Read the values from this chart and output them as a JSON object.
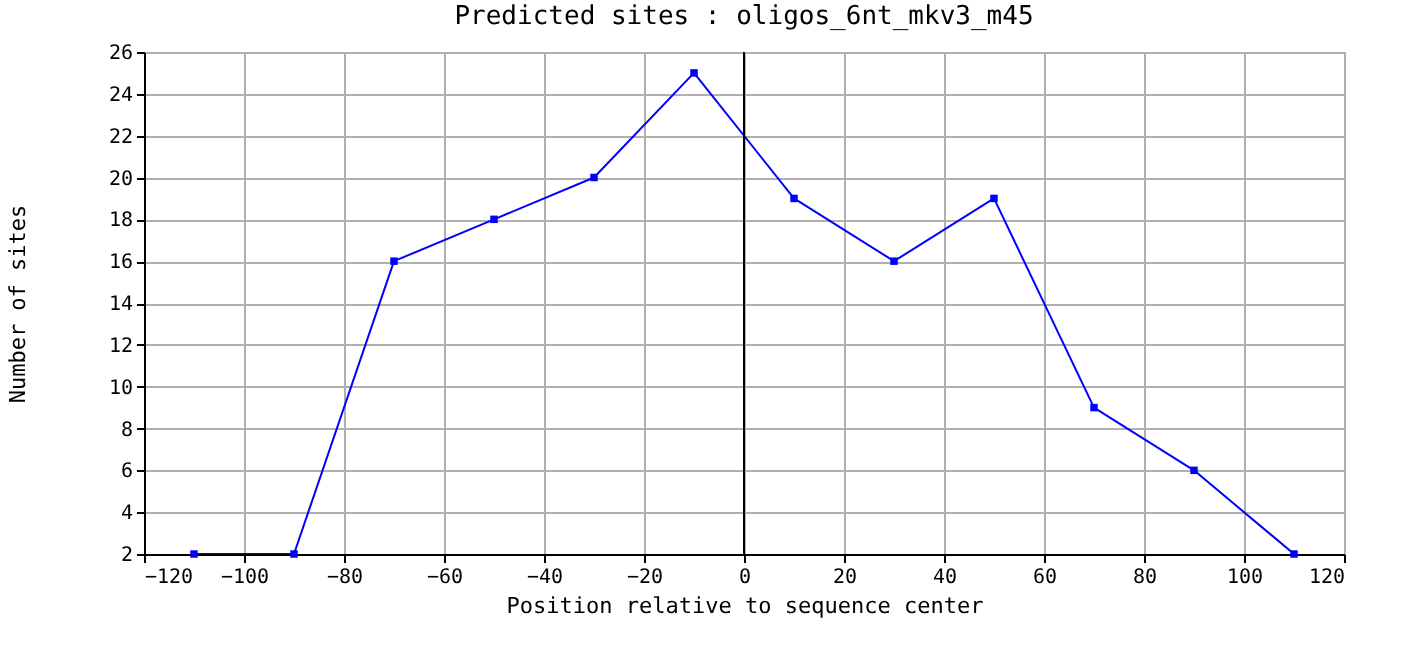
{
  "chart_data": {
    "type": "line",
    "title": "Predicted sites : oligos_6nt_mkv3_m45",
    "xlabel": "Position relative to sequence center",
    "ylabel": "Number of sites",
    "x": [
      -110,
      -90,
      -70,
      -50,
      -30,
      -10,
      10,
      30,
      50,
      70,
      90,
      110
    ],
    "series": [
      {
        "color": "#0000ff",
        "values": [
          2,
          2,
          16,
          18,
          20,
          25,
          19,
          16,
          19,
          9,
          6,
          2
        ]
      }
    ],
    "xlim": [
      -120,
      120
    ],
    "xticks": [
      -120,
      -100,
      -80,
      -60,
      -40,
      -20,
      0,
      20,
      40,
      60,
      80,
      100,
      120
    ],
    "ylim": [
      2,
      26
    ],
    "yticks": [
      2,
      4,
      6,
      8,
      10,
      12,
      14,
      16,
      18,
      20,
      22,
      24,
      26
    ],
    "ref_lines": [
      {
        "axis": "x",
        "value": 0,
        "color": "#000000"
      }
    ],
    "grid": true,
    "marker": "square",
    "line_style": "solid"
  }
}
